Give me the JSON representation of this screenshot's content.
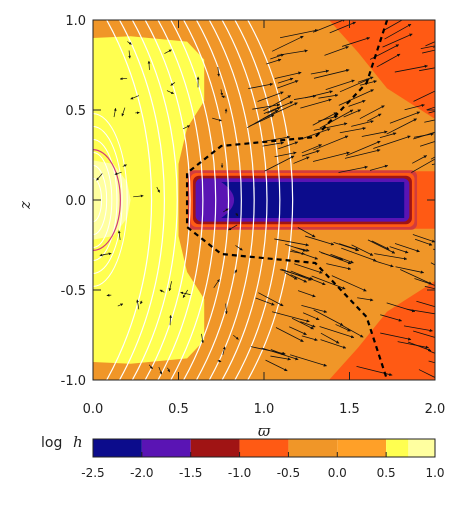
{
  "chart_data": {
    "type": "heatmap",
    "title": "",
    "xlabel": "ϖ",
    "ylabel": "z",
    "xlim": [
      0.0,
      2.0
    ],
    "ylim": [
      -1.0,
      1.0
    ],
    "xticks": [
      "0.0",
      "0.5",
      "1.0",
      "1.5",
      "2.0"
    ],
    "xtick_values": [
      0.0,
      0.5,
      1.0,
      1.5,
      2.0
    ],
    "yticks": [
      "-1.0",
      "-0.5",
      "0.0",
      "0.5",
      "1.0"
    ],
    "ytick_values": [
      -1.0,
      -0.5,
      0.0,
      0.5,
      1.0
    ],
    "colorbar": {
      "title_prefix": "log",
      "title_var": "h",
      "tick_labels": [
        "-2.5",
        "-2.0",
        "-1.5",
        "-1.0",
        "-0.5",
        "0.0",
        "0.5",
        "1.0"
      ],
      "tick_values": [
        -2.5,
        -2.0,
        -1.5,
        -1.0,
        -0.5,
        0.0,
        0.5,
        1.0
      ],
      "bins": [
        {
          "from": -2.5,
          "to": -2.0,
          "color": "#0c0c8c"
        },
        {
          "from": -2.0,
          "to": -1.5,
          "color": "#5a14b4"
        },
        {
          "from": -1.5,
          "to": -1.0,
          "color": "#a01414"
        },
        {
          "from": -1.0,
          "to": -0.5,
          "color": "#ff5a14"
        },
        {
          "from": -0.5,
          "to": 0.0,
          "color": "#f09628"
        },
        {
          "from": 0.0,
          "to": 0.5,
          "color": "#ffa028"
        },
        {
          "from": 0.5,
          "to": 1.0,
          "color": "#ffff50"
        }
      ],
      "extra_bin": {
        "from": 1.0,
        "to": 1.0,
        "color": "#ffffa0"
      }
    },
    "regions": [
      {
        "name": "background",
        "level": -0.25,
        "color": "#f09628"
      },
      {
        "name": "inner-bright",
        "level": 0.75,
        "color": "#ffff50"
      },
      {
        "name": "core-pale",
        "level": 1.0,
        "color": "#ffffa0"
      },
      {
        "name": "outer-edge",
        "level": -0.75,
        "color": "#ff5a14"
      },
      {
        "name": "torus-dark",
        "level": -2.25,
        "color": "#0c0c8c"
      },
      {
        "name": "torus-violet",
        "level": -1.75,
        "color": "#5a14b4"
      }
    ],
    "torus": {
      "x_range": [
        0.6,
        1.85
      ],
      "z_range": [
        -0.12,
        0.12
      ]
    },
    "boundary_line": {
      "style": "dashed",
      "color": "#000000",
      "points": [
        [
          1.72,
          1.0
        ],
        [
          1.6,
          0.65
        ],
        [
          1.3,
          0.35
        ],
        [
          0.75,
          0.3
        ],
        [
          0.55,
          0.15
        ],
        [
          0.55,
          -0.15
        ],
        [
          0.75,
          -0.3
        ],
        [
          1.3,
          -0.35
        ],
        [
          1.6,
          -0.65
        ],
        [
          1.72,
          -1.0
        ]
      ]
    },
    "grid": false,
    "legend": "none",
    "colors": {
      "field_lines": "#ffffff",
      "vectors": "#111111",
      "pink_contour": "#d23c78"
    }
  }
}
